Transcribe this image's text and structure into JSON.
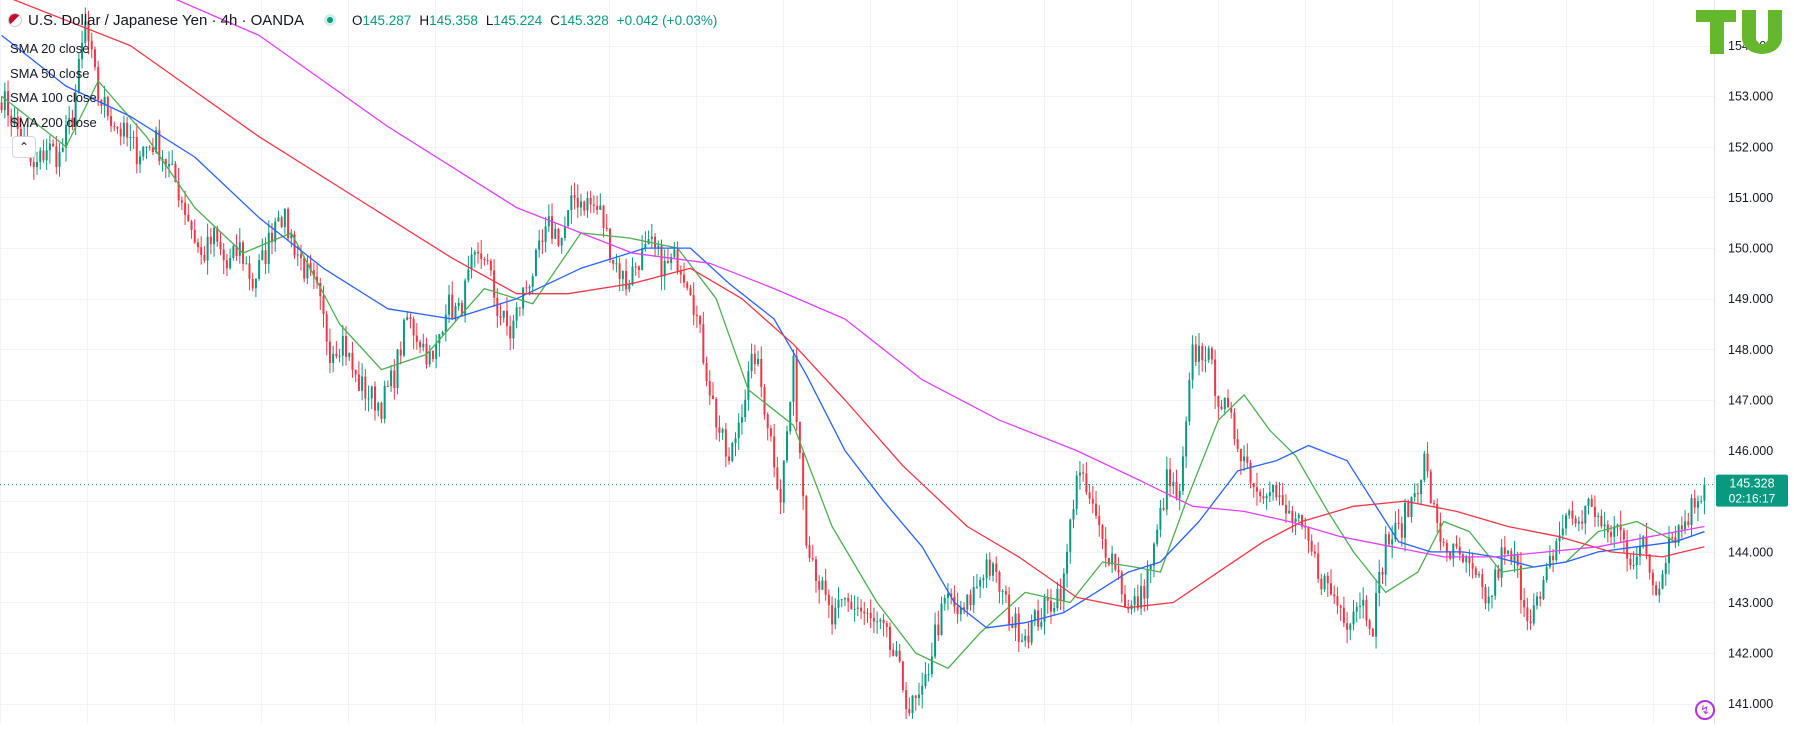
{
  "header": {
    "symbol_title": "U.S. Dollar / Japanese Yen · 4h · OANDA",
    "ohlc": [
      {
        "label": "O",
        "value": "145.287"
      },
      {
        "label": "H",
        "value": "145.358"
      },
      {
        "label": "L",
        "value": "145.224"
      },
      {
        "label": "C",
        "value": "145.328"
      }
    ],
    "change": "+0.042 (+0.03%)"
  },
  "legend": [
    {
      "label": "SMA 20 close",
      "color": "#4caf50"
    },
    {
      "label": "SMA 50 close",
      "color": "#2962ff"
    },
    {
      "label": "SMA 100 close",
      "color": "#f23645"
    },
    {
      "label": "SMA 200 close",
      "color": "#e040fb"
    }
  ],
  "collapse_icon": "chevron-up-icon",
  "price_badge": {
    "price": "145.328",
    "countdown": "02:16:17",
    "color": "#089981"
  },
  "colors": {
    "up": "#089981",
    "down": "#f23645"
  },
  "chart_data": {
    "type": "candlestick",
    "yaxis": {
      "ticks": [
        "141.000",
        "142.000",
        "143.000",
        "144.000",
        "145.000",
        "146.000",
        "147.000",
        "148.000",
        "149.000",
        "150.000",
        "151.000",
        "152.000",
        "153.000",
        "154.000"
      ],
      "range": [
        140.6,
        154.9
      ]
    },
    "last_price": 145.328,
    "close_path": [
      [
        0,
        153.0
      ],
      [
        6,
        152.2
      ],
      [
        10,
        151.5
      ],
      [
        14,
        152.0
      ],
      [
        18,
        151.8
      ],
      [
        22,
        152.6
      ],
      [
        26,
        154.4
      ],
      [
        30,
        153.0
      ],
      [
        36,
        152.4
      ],
      [
        42,
        151.9
      ],
      [
        48,
        152.1
      ],
      [
        54,
        151.3
      ],
      [
        58,
        150.6
      ],
      [
        62,
        149.8
      ],
      [
        66,
        150.2
      ],
      [
        70,
        149.6
      ],
      [
        74,
        150.0
      ],
      [
        78,
        149.3
      ],
      [
        82,
        149.9
      ],
      [
        86,
        150.8
      ],
      [
        90,
        150.2
      ],
      [
        94,
        149.6
      ],
      [
        98,
        149.1
      ],
      [
        102,
        148.0
      ],
      [
        106,
        148.2
      ],
      [
        110,
        147.4
      ],
      [
        114,
        147.1
      ],
      [
        118,
        146.9
      ],
      [
        122,
        147.5
      ],
      [
        126,
        148.6
      ],
      [
        130,
        148.2
      ],
      [
        134,
        147.7
      ],
      [
        138,
        148.9
      ],
      [
        142,
        148.7
      ],
      [
        146,
        149.6
      ],
      [
        150,
        149.9
      ],
      [
        154,
        148.8
      ],
      [
        158,
        148.3
      ],
      [
        162,
        149.1
      ],
      [
        166,
        149.7
      ],
      [
        170,
        150.4
      ],
      [
        174,
        150.2
      ],
      [
        178,
        151.0
      ],
      [
        182,
        150.9
      ],
      [
        186,
        150.7
      ],
      [
        190,
        149.8
      ],
      [
        194,
        149.3
      ],
      [
        198,
        149.8
      ],
      [
        202,
        150.0
      ],
      [
        206,
        149.6
      ],
      [
        210,
        149.8
      ],
      [
        214,
        149.3
      ],
      [
        218,
        147.9
      ],
      [
        222,
        146.6
      ],
      [
        226,
        145.7
      ],
      [
        230,
        146.9
      ],
      [
        234,
        147.9
      ],
      [
        238,
        146.6
      ],
      [
        242,
        145.1
      ],
      [
        246,
        147.6
      ],
      [
        250,
        144.4
      ],
      [
        254,
        143.4
      ],
      [
        258,
        142.6
      ],
      [
        262,
        143.0
      ],
      [
        266,
        142.9
      ],
      [
        270,
        142.6
      ],
      [
        274,
        142.4
      ],
      [
        278,
        141.8
      ],
      [
        282,
        140.9
      ],
      [
        286,
        141.1
      ],
      [
        290,
        142.4
      ],
      [
        294,
        143.1
      ],
      [
        298,
        142.7
      ],
      [
        302,
        143.2
      ],
      [
        306,
        143.8
      ],
      [
        310,
        143.3
      ],
      [
        314,
        142.6
      ],
      [
        318,
        142.4
      ],
      [
        322,
        142.7
      ],
      [
        326,
        143.0
      ],
      [
        330,
        143.4
      ],
      [
        334,
        145.6
      ],
      [
        338,
        145.0
      ],
      [
        342,
        144.2
      ],
      [
        346,
        143.8
      ],
      [
        350,
        142.8
      ],
      [
        354,
        143.1
      ],
      [
        358,
        144.0
      ],
      [
        362,
        145.4
      ],
      [
        366,
        145.0
      ],
      [
        370,
        147.9
      ],
      [
        374,
        148.0
      ],
      [
        378,
        147.1
      ],
      [
        382,
        146.5
      ],
      [
        386,
        145.9
      ],
      [
        390,
        145.2
      ],
      [
        394,
        145.4
      ],
      [
        398,
        144.8
      ],
      [
        402,
        144.6
      ],
      [
        406,
        144.1
      ],
      [
        410,
        143.5
      ],
      [
        414,
        143.1
      ],
      [
        418,
        142.7
      ],
      [
        422,
        143.1
      ],
      [
        426,
        142.6
      ],
      [
        430,
        144.2
      ],
      [
        434,
        144.4
      ],
      [
        438,
        145.0
      ],
      [
        442,
        145.8
      ],
      [
        446,
        144.4
      ],
      [
        450,
        144.0
      ],
      [
        454,
        143.8
      ],
      [
        458,
        143.4
      ],
      [
        462,
        143.0
      ],
      [
        466,
        143.9
      ],
      [
        470,
        143.8
      ],
      [
        474,
        142.8
      ],
      [
        478,
        143.0
      ],
      [
        482,
        144.0
      ],
      [
        486,
        144.7
      ],
      [
        490,
        144.6
      ],
      [
        494,
        145.0
      ],
      [
        498,
        144.3
      ],
      [
        502,
        144.5
      ],
      [
        506,
        143.9
      ],
      [
        510,
        144.1
      ],
      [
        514,
        143.2
      ],
      [
        518,
        144.3
      ],
      [
        522,
        144.5
      ],
      [
        526,
        145.0
      ],
      [
        529,
        145.328
      ]
    ],
    "sma_lines": [
      {
        "name": "SMA 20 close",
        "color": "#4caf50",
        "points": [
          [
            0,
            153.0
          ],
          [
            20,
            152.0
          ],
          [
            30,
            153.3
          ],
          [
            45,
            152.2
          ],
          [
            60,
            150.8
          ],
          [
            75,
            149.9
          ],
          [
            90,
            150.3
          ],
          [
            105,
            148.5
          ],
          [
            118,
            147.6
          ],
          [
            132,
            147.9
          ],
          [
            150,
            149.2
          ],
          [
            165,
            148.9
          ],
          [
            180,
            150.3
          ],
          [
            195,
            150.2
          ],
          [
            210,
            150.0
          ],
          [
            222,
            149.0
          ],
          [
            232,
            147.2
          ],
          [
            246,
            146.5
          ],
          [
            258,
            144.5
          ],
          [
            272,
            143.0
          ],
          [
            284,
            142.0
          ],
          [
            294,
            141.7
          ],
          [
            304,
            142.4
          ],
          [
            318,
            143.2
          ],
          [
            332,
            143.0
          ],
          [
            342,
            143.8
          ],
          [
            352,
            143.7
          ],
          [
            360,
            143.6
          ],
          [
            368,
            145.0
          ],
          [
            378,
            146.6
          ],
          [
            386,
            147.1
          ],
          [
            394,
            146.4
          ],
          [
            402,
            145.9
          ],
          [
            412,
            144.8
          ],
          [
            420,
            144.0
          ],
          [
            430,
            143.2
          ],
          [
            440,
            143.6
          ],
          [
            448,
            144.6
          ],
          [
            456,
            144.4
          ],
          [
            466,
            143.6
          ],
          [
            476,
            143.7
          ],
          [
            486,
            143.8
          ],
          [
            496,
            144.4
          ],
          [
            508,
            144.6
          ],
          [
            520,
            144.2
          ],
          [
            529,
            144.4
          ]
        ]
      },
      {
        "name": "SMA 50 close",
        "color": "#2962ff",
        "points": [
          [
            0,
            154.2
          ],
          [
            20,
            153.2
          ],
          [
            40,
            152.6
          ],
          [
            60,
            151.8
          ],
          [
            80,
            150.6
          ],
          [
            100,
            149.6
          ],
          [
            120,
            148.8
          ],
          [
            140,
            148.6
          ],
          [
            160,
            149.0
          ],
          [
            180,
            149.6
          ],
          [
            200,
            150.0
          ],
          [
            214,
            150.0
          ],
          [
            226,
            149.3
          ],
          [
            240,
            148.6
          ],
          [
            250,
            147.5
          ],
          [
            262,
            146.0
          ],
          [
            274,
            145.0
          ],
          [
            286,
            144.1
          ],
          [
            296,
            143.0
          ],
          [
            306,
            142.5
          ],
          [
            318,
            142.6
          ],
          [
            330,
            142.8
          ],
          [
            340,
            143.2
          ],
          [
            350,
            143.6
          ],
          [
            360,
            143.8
          ],
          [
            372,
            144.6
          ],
          [
            384,
            145.6
          ],
          [
            396,
            145.8
          ],
          [
            406,
            146.1
          ],
          [
            418,
            145.8
          ],
          [
            426,
            145.0
          ],
          [
            434,
            144.2
          ],
          [
            444,
            144.0
          ],
          [
            454,
            144.0
          ],
          [
            464,
            143.9
          ],
          [
            476,
            143.7
          ],
          [
            486,
            143.8
          ],
          [
            496,
            144.0
          ],
          [
            508,
            144.1
          ],
          [
            520,
            144.2
          ],
          [
            529,
            144.4
          ]
        ]
      },
      {
        "name": "SMA 100 close",
        "color": "#f23645",
        "points": [
          [
            0,
            155.0
          ],
          [
            40,
            154.0
          ],
          [
            80,
            152.2
          ],
          [
            110,
            151.0
          ],
          [
            140,
            149.8
          ],
          [
            160,
            149.1
          ],
          [
            176,
            149.1
          ],
          [
            196,
            149.3
          ],
          [
            214,
            149.6
          ],
          [
            230,
            149.0
          ],
          [
            246,
            148.1
          ],
          [
            262,
            147.0
          ],
          [
            280,
            145.7
          ],
          [
            300,
            144.5
          ],
          [
            316,
            143.9
          ],
          [
            334,
            143.1
          ],
          [
            350,
            142.9
          ],
          [
            364,
            143.0
          ],
          [
            378,
            143.6
          ],
          [
            392,
            144.2
          ],
          [
            404,
            144.6
          ],
          [
            420,
            144.9
          ],
          [
            436,
            145.0
          ],
          [
            452,
            144.8
          ],
          [
            468,
            144.5
          ],
          [
            484,
            144.3
          ],
          [
            500,
            144.0
          ],
          [
            516,
            143.9
          ],
          [
            529,
            144.1
          ]
        ]
      },
      {
        "name": "SMA 200 close",
        "color": "#e040fb",
        "points": [
          [
            0,
            155.8
          ],
          [
            40,
            155.3
          ],
          [
            80,
            154.2
          ],
          [
            120,
            152.4
          ],
          [
            160,
            150.8
          ],
          [
            196,
            149.9
          ],
          [
            220,
            149.7
          ],
          [
            240,
            149.2
          ],
          [
            262,
            148.6
          ],
          [
            286,
            147.4
          ],
          [
            310,
            146.6
          ],
          [
            334,
            146.0
          ],
          [
            354,
            145.4
          ],
          [
            370,
            144.9
          ],
          [
            386,
            144.8
          ],
          [
            400,
            144.6
          ],
          [
            416,
            144.3
          ],
          [
            432,
            144.1
          ],
          [
            448,
            143.9
          ],
          [
            464,
            143.9
          ],
          [
            480,
            144.0
          ],
          [
            496,
            144.1
          ],
          [
            512,
            144.3
          ],
          [
            529,
            144.5
          ]
        ]
      }
    ]
  }
}
